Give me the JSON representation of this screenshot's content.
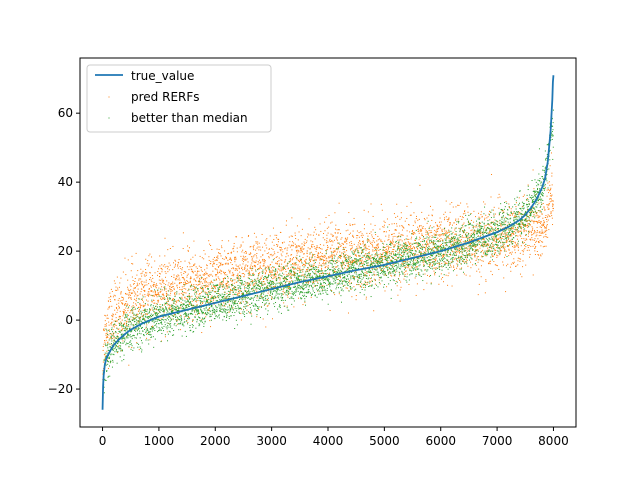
{
  "chart_data": {
    "type": "scatter",
    "title": "",
    "xlabel": "",
    "ylabel": "",
    "xlim": [
      -400,
      8400
    ],
    "ylim": [
      -31,
      76
    ],
    "xticks": [
      0,
      1000,
      2000,
      3000,
      4000,
      5000,
      6000,
      7000,
      8000
    ],
    "yticks": [
      -20,
      0,
      20,
      40,
      60
    ],
    "xtick_labels": [
      "0",
      "1000",
      "2000",
      "3000",
      "4000",
      "5000",
      "6000",
      "7000",
      "8000"
    ],
    "ytick_labels": [
      "−20",
      "0",
      "20",
      "40",
      "60"
    ],
    "grid": false,
    "legend_position": "upper-left",
    "n_points": 8000,
    "series": [
      {
        "name": "true_value",
        "kind": "line",
        "color": "#1f77b4",
        "x": [
          0,
          10,
          20,
          40,
          60,
          100,
          150,
          200,
          300,
          400,
          500,
          700,
          1000,
          1500,
          2000,
          2500,
          3000,
          3500,
          4000,
          4500,
          5000,
          5500,
          6000,
          6500,
          7000,
          7200,
          7400,
          7500,
          7600,
          7700,
          7800,
          7850,
          7900,
          7950,
          7980,
          7990,
          8000
        ],
        "y": [
          -26,
          -19,
          -16,
          -13,
          -11.5,
          -10,
          -8.5,
          -7.2,
          -5.5,
          -4,
          -2.8,
          -1,
          1,
          3,
          5,
          7,
          9,
          11,
          12.7,
          14.5,
          16,
          18,
          20,
          22.5,
          25.5,
          27,
          29,
          30.5,
          32.5,
          35,
          38.5,
          41,
          46,
          55,
          64,
          69,
          71
        ]
      },
      {
        "name": "pred RERFs",
        "kind": "scatter",
        "color": "#ff7f0e",
        "offset_profile": {
          "x": [
            0,
            1000,
            2000,
            3000,
            4000,
            5000,
            6000,
            7000,
            7600,
            8000
          ],
          "offset": [
            8,
            7,
            6.5,
            6,
            5,
            4,
            2,
            -2,
            -5,
            -20
          ]
        },
        "spread": 5
      },
      {
        "name": "better than median",
        "kind": "scatter",
        "color": "#2ca02c",
        "offset_profile": {
          "x": [
            0,
            8000
          ],
          "offset": [
            0,
            0
          ]
        },
        "spread": 3
      }
    ]
  }
}
